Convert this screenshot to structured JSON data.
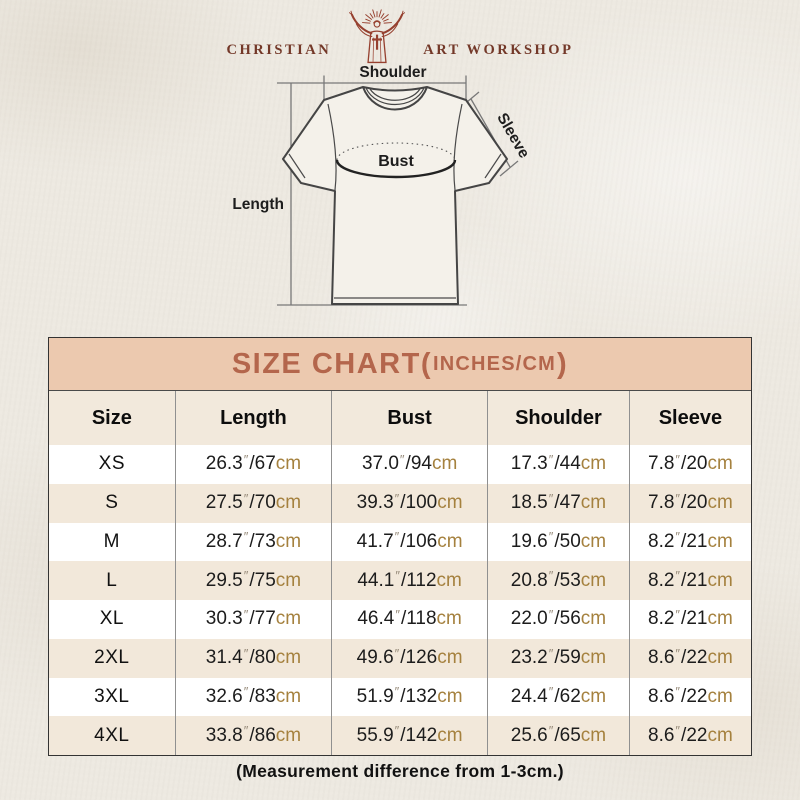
{
  "brand": {
    "name_left": "CHRISTIAN",
    "name_right": "ART WORKSHOP",
    "logo_color": "#96402F",
    "text_color": "#733828"
  },
  "diagram": {
    "labels": {
      "shoulder": "Shoulder",
      "sleeve": "Sleeve",
      "bust": "Bust",
      "length": "Length"
    }
  },
  "size_chart": {
    "title": {
      "lead": "SIZE CHART(",
      "units": "INCHES/CM",
      "tail": ")"
    },
    "columns": [
      "Size",
      "Length",
      "Bust",
      "Shoulder",
      "Sleeve"
    ],
    "units": {
      "inch_mark": "″",
      "separator": "/",
      "cm_suffix": "cm"
    },
    "colors": {
      "band_bg": "#ECC9AF",
      "band_text": "#B4664C",
      "row_beige": "#F2E8DA",
      "row_white": "#FFFFFF",
      "cm_text": "#A5813E"
    },
    "rows": [
      {
        "size": "XS",
        "length": {
          "in": "26.3",
          "cm": "67"
        },
        "bust": {
          "in": "37.0",
          "cm": "94"
        },
        "shoulder": {
          "in": "17.3",
          "cm": "44"
        },
        "sleeve": {
          "in": "7.8",
          "cm": "20"
        }
      },
      {
        "size": "S",
        "length": {
          "in": "27.5",
          "cm": "70"
        },
        "bust": {
          "in": "39.3",
          "cm": "100"
        },
        "shoulder": {
          "in": "18.5",
          "cm": "47"
        },
        "sleeve": {
          "in": "7.8",
          "cm": "20"
        }
      },
      {
        "size": "M",
        "length": {
          "in": "28.7",
          "cm": "73"
        },
        "bust": {
          "in": "41.7",
          "cm": "106"
        },
        "shoulder": {
          "in": "19.6",
          "cm": "50"
        },
        "sleeve": {
          "in": "8.2",
          "cm": "21"
        }
      },
      {
        "size": "L",
        "length": {
          "in": "29.5",
          "cm": "75"
        },
        "bust": {
          "in": "44.1",
          "cm": "112"
        },
        "shoulder": {
          "in": "20.8",
          "cm": "53"
        },
        "sleeve": {
          "in": "8.2",
          "cm": "21"
        }
      },
      {
        "size": "XL",
        "length": {
          "in": "30.3",
          "cm": "77"
        },
        "bust": {
          "in": "46.4",
          "cm": "118"
        },
        "shoulder": {
          "in": "22.0",
          "cm": "56"
        },
        "sleeve": {
          "in": "8.2",
          "cm": "21"
        }
      },
      {
        "size": "2XL",
        "length": {
          "in": "31.4",
          "cm": "80"
        },
        "bust": {
          "in": "49.6",
          "cm": "126"
        },
        "shoulder": {
          "in": "23.2",
          "cm": "59"
        },
        "sleeve": {
          "in": "8.6",
          "cm": "22"
        }
      },
      {
        "size": "3XL",
        "length": {
          "in": "32.6",
          "cm": "83"
        },
        "bust": {
          "in": "51.9",
          "cm": "132"
        },
        "shoulder": {
          "in": "24.4",
          "cm": "62"
        },
        "sleeve": {
          "in": "8.6",
          "cm": "22"
        }
      },
      {
        "size": "4XL",
        "length": {
          "in": "33.8",
          "cm": "86"
        },
        "bust": {
          "in": "55.9",
          "cm": "142"
        },
        "shoulder": {
          "in": "25.6",
          "cm": "65"
        },
        "sleeve": {
          "in": "8.6",
          "cm": "22"
        }
      }
    ]
  },
  "footer": {
    "note": "(Measurement difference from 1-3cm.)"
  },
  "chart_data": {
    "type": "table",
    "title": "SIZE CHART(INCHES/CM)",
    "columns": [
      "Size",
      "Length",
      "Bust",
      "Shoulder",
      "Sleeve"
    ],
    "rows_inches": [
      [
        "XS",
        26.3,
        37.0,
        17.3,
        7.8
      ],
      [
        "S",
        27.5,
        39.3,
        18.5,
        7.8
      ],
      [
        "M",
        28.7,
        41.7,
        19.6,
        8.2
      ],
      [
        "L",
        29.5,
        44.1,
        20.8,
        8.2
      ],
      [
        "XL",
        30.3,
        46.4,
        22.0,
        8.2
      ],
      [
        "2XL",
        31.4,
        49.6,
        23.2,
        8.6
      ],
      [
        "3XL",
        32.6,
        51.9,
        24.4,
        8.6
      ],
      [
        "4XL",
        33.8,
        55.9,
        25.6,
        8.6
      ]
    ],
    "rows_cm": [
      [
        "XS",
        67,
        94,
        44,
        20
      ],
      [
        "S",
        70,
        100,
        47,
        20
      ],
      [
        "M",
        73,
        106,
        50,
        21
      ],
      [
        "L",
        75,
        112,
        53,
        21
      ],
      [
        "XL",
        77,
        118,
        56,
        21
      ],
      [
        "2XL",
        80,
        126,
        59,
        22
      ],
      [
        "3XL",
        83,
        132,
        62,
        22
      ],
      [
        "4XL",
        86,
        142,
        65,
        22
      ]
    ],
    "note": "(Measurement difference from 1-3cm.)"
  }
}
